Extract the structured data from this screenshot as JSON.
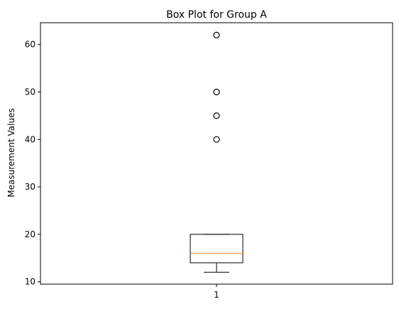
{
  "chart_data": {
    "type": "box",
    "title": "Box Plot for Group A",
    "xlabel": "",
    "ylabel": "Measurement Values",
    "x_tick_labels": [
      "1"
    ],
    "y_ticks": [
      10,
      20,
      30,
      40,
      50,
      60
    ],
    "ylim": [
      9.5,
      64.6
    ],
    "grid": false,
    "boxes": [
      {
        "category": "1",
        "whisker_low": 12,
        "q1": 14,
        "median": 16,
        "q3": 20,
        "whisker_high": 20,
        "outliers": [
          40,
          45,
          50,
          62
        ]
      }
    ],
    "colors": {
      "box": "#000000",
      "median": "#ff7f0e",
      "outlier_edge": "#000000",
      "outlier_fill": "none"
    }
  }
}
